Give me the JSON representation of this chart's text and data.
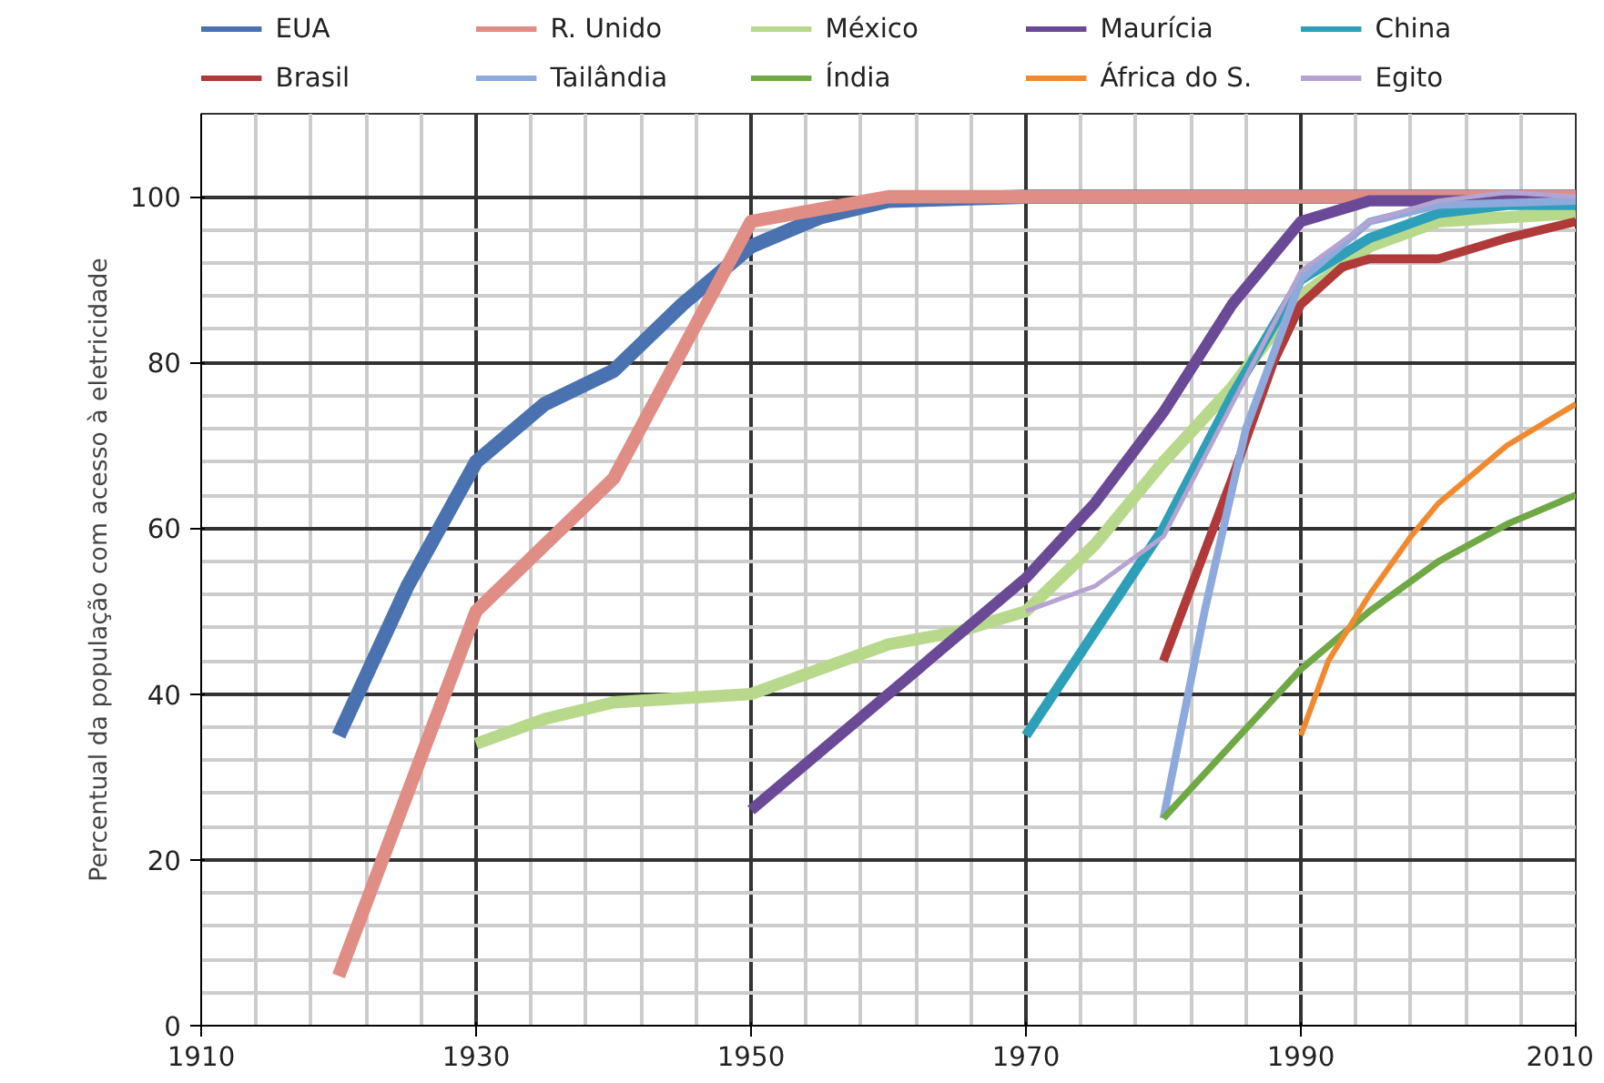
{
  "chart_data": {
    "type": "line",
    "ylabel": "Percentual da população com acesso à eletricidade",
    "xlim": [
      1910,
      2010
    ],
    "xticks": [
      1910,
      1930,
      1950,
      1970,
      1990,
      2010
    ],
    "ylim": [
      0,
      110
    ],
    "yticks": [
      0,
      20,
      40,
      60,
      80,
      100
    ],
    "grid": true,
    "legend": "top",
    "marker": "none",
    "line_style": "solid",
    "series": [
      {
        "name": "EUA",
        "color": "#4a72b0",
        "x": [
          1920,
          1925,
          1930,
          1935,
          1940,
          1945,
          1950,
          1955,
          1960,
          1970,
          2010
        ],
        "values": [
          35,
          53,
          68,
          75,
          79,
          87,
          94,
          97.5,
          99.5,
          100,
          100
        ]
      },
      {
        "name": "R. Unido",
        "color": "#e08d85",
        "x": [
          1920,
          1930,
          1940,
          1950,
          1960,
          2010
        ],
        "values": [
          6,
          50,
          66,
          97,
          100,
          100
        ]
      },
      {
        "name": "México",
        "color": "#b8d98c",
        "x": [
          1930,
          1935,
          1940,
          1950,
          1955,
          1960,
          1965,
          1970,
          1975,
          1980,
          1985,
          1990,
          1995,
          2000,
          2010
        ],
        "values": [
          34,
          37,
          39,
          40,
          43,
          46,
          47.5,
          50,
          58,
          68,
          77,
          88,
          94,
          97,
          98
        ]
      },
      {
        "name": "Maurícia",
        "color": "#6a4a96",
        "x": [
          1950,
          1960,
          1970,
          1975,
          1980,
          1985,
          1990,
          1995,
          2000,
          2010
        ],
        "values": [
          26,
          40,
          54,
          63,
          74,
          87,
          97,
          99.5,
          99.5,
          99.5
        ]
      },
      {
        "name": "China",
        "color": "#2e9fb8",
        "x": [
          1970,
          1980,
          1985,
          1990,
          1995,
          2000,
          2005,
          2010
        ],
        "values": [
          35,
          60,
          76,
          90,
          95,
          98,
          99,
          99
        ]
      },
      {
        "name": "Brasil",
        "color": "#b03a3a",
        "x": [
          1980,
          1985,
          1988,
          1990,
          1993,
          1995,
          2000,
          2005,
          2010
        ],
        "values": [
          44,
          66,
          80,
          87,
          91.5,
          92.5,
          92.5,
          95,
          97
        ]
      },
      {
        "name": "Tailândia",
        "color": "#8eaadd",
        "x": [
          1980,
          1983,
          1986,
          1990,
          1995,
          2000,
          2010
        ],
        "values": [
          25,
          50,
          72,
          90,
          97,
          99,
          99.5
        ]
      },
      {
        "name": "Índia",
        "color": "#70a845",
        "x": [
          1980,
          1985,
          1990,
          1995,
          2000,
          2005,
          2010
        ],
        "values": [
          25,
          34,
          43,
          50,
          56,
          60.5,
          64
        ]
      },
      {
        "name": "África do S.",
        "color": "#f08a30",
        "x": [
          1990,
          1992,
          1995,
          1998,
          2000,
          2005,
          2010
        ],
        "values": [
          35,
          44,
          52,
          59,
          63,
          70,
          75
        ]
      },
      {
        "name": "Egito",
        "color": "#b5a3d1",
        "x": [
          1970,
          1975,
          1980,
          1985,
          1990,
          1995,
          2000,
          2005,
          2010
        ],
        "values": [
          50,
          53,
          59,
          75,
          91,
          97,
          99.5,
          100.5,
          100
        ]
      }
    ]
  }
}
